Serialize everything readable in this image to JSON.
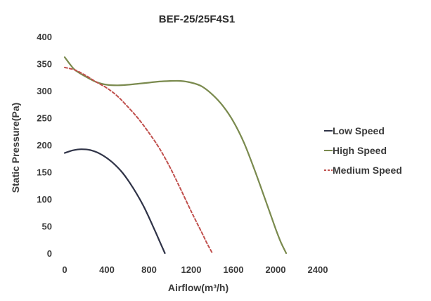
{
  "chart_data": {
    "type": "line",
    "title": "BEF-25/25F4S1",
    "xlabel": "Airflow(m³/h)",
    "ylabel": "Static Pressure(Pa)",
    "xlim": [
      0,
      2400
    ],
    "ylim": [
      0,
      400
    ],
    "x_ticks": [
      0,
      400,
      800,
      1200,
      1600,
      2000,
      2400
    ],
    "y_ticks": [
      0,
      50,
      100,
      150,
      200,
      250,
      300,
      350,
      400
    ],
    "grid": false,
    "legend_position": "right",
    "series": [
      {
        "name": "Low Speed",
        "color": "#2f3347",
        "dash": "solid",
        "points": [
          [
            0,
            185
          ],
          [
            80,
            190
          ],
          [
            160,
            192
          ],
          [
            250,
            190
          ],
          [
            350,
            182
          ],
          [
            450,
            168
          ],
          [
            550,
            148
          ],
          [
            650,
            120
          ],
          [
            750,
            86
          ],
          [
            850,
            44
          ],
          [
            900,
            22
          ],
          [
            950,
            0
          ]
        ]
      },
      {
        "name": "High Speed",
        "color": "#7a8a4e",
        "dash": "solid",
        "points": [
          [
            0,
            362
          ],
          [
            50,
            349
          ],
          [
            100,
            338
          ],
          [
            200,
            326
          ],
          [
            300,
            316
          ],
          [
            400,
            311
          ],
          [
            500,
            310
          ],
          [
            600,
            311
          ],
          [
            700,
            313
          ],
          [
            800,
            315
          ],
          [
            900,
            317
          ],
          [
            1000,
            318
          ],
          [
            1100,
            318
          ],
          [
            1200,
            315
          ],
          [
            1300,
            308
          ],
          [
            1400,
            293
          ],
          [
            1500,
            272
          ],
          [
            1600,
            243
          ],
          [
            1700,
            204
          ],
          [
            1800,
            154
          ],
          [
            1900,
            100
          ],
          [
            2000,
            45
          ],
          [
            2050,
            20
          ],
          [
            2100,
            0
          ]
        ]
      },
      {
        "name": "Medium Speed",
        "color": "#c0504d",
        "dash": "dashed",
        "points": [
          [
            0,
            343
          ],
          [
            100,
            338
          ],
          [
            200,
            328
          ],
          [
            300,
            316
          ],
          [
            400,
            305
          ],
          [
            500,
            290
          ],
          [
            600,
            270
          ],
          [
            700,
            248
          ],
          [
            800,
            222
          ],
          [
            900,
            193
          ],
          [
            1000,
            158
          ],
          [
            1100,
            118
          ],
          [
            1200,
            77
          ],
          [
            1300,
            38
          ],
          [
            1350,
            18
          ],
          [
            1400,
            0
          ]
        ]
      }
    ]
  }
}
